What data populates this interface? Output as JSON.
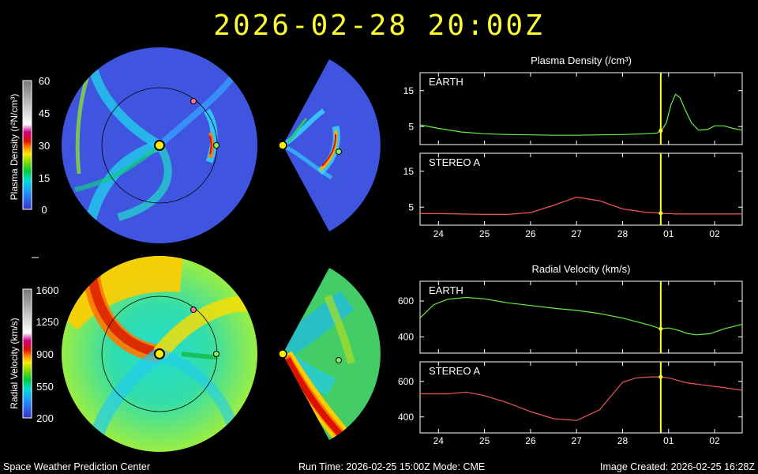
{
  "title": "2026-02-28  20:00Z",
  "footer": {
    "left": "Space Weather Prediction Center",
    "center": "Run Time: 2026-02-25 15:00Z  Mode: CME",
    "right": "Image Created: 2026-02-25 16:28Z"
  },
  "colorbars": [
    {
      "label": "Plasma Density (r²N/cm³)",
      "ticks": [
        "60",
        "45",
        "30",
        "15",
        "0"
      ]
    },
    {
      "label": "Radial Velocity (km/s)",
      "ticks": [
        "1600",
        "1250",
        "900",
        "550",
        "200"
      ]
    }
  ],
  "colors": {
    "title": "#ffff33",
    "earth": "#66ee44",
    "stereo_a": "#ee5555",
    "current_time": "#ffff33",
    "model_background_density": "#3f55e0"
  },
  "chart_data": [
    {
      "type": "line",
      "title": "Plasma Density (/cm³)",
      "x_ticks": [
        "24",
        "25",
        "26",
        "27",
        "28",
        "01",
        "02"
      ],
      "x": [
        23.6,
        24.0,
        24.5,
        25.0,
        25.5,
        26.0,
        26.5,
        27.0,
        27.5,
        28.0,
        28.5,
        28.75,
        28.85,
        28.95,
        29.05,
        29.15,
        29.25,
        29.35,
        29.5,
        29.65,
        29.85,
        30.0,
        30.2,
        30.4,
        30.6
      ],
      "current_time": 28.83,
      "panels": [
        {
          "name": "EARTH",
          "yticks": [
            "15",
            "5"
          ],
          "ylim": [
            0,
            20
          ],
          "values": [
            5.5,
            4.5,
            3.5,
            3.0,
            2.8,
            2.7,
            2.6,
            2.6,
            2.7,
            2.8,
            3.0,
            3.2,
            4.0,
            6.0,
            11.0,
            14.0,
            13.0,
            10.0,
            6.0,
            4.0,
            4.2,
            5.2,
            5.2,
            4.5,
            4.0
          ]
        },
        {
          "name": "STEREO A",
          "yticks": [
            "15",
            "5"
          ],
          "ylim": [
            0,
            20
          ],
          "values": [
            3.2,
            3.2,
            3.1,
            3.0,
            3.0,
            3.5,
            5.5,
            7.8,
            6.8,
            4.5,
            3.6,
            3.4,
            3.3,
            3.2,
            3.2,
            3.1,
            3.1,
            3.1,
            3.1,
            3.1,
            3.1,
            3.1,
            3.1,
            3.1,
            3.1
          ]
        }
      ]
    },
    {
      "type": "line",
      "title": "Radial Velocity (km/s)",
      "x_ticks": [
        "24",
        "25",
        "26",
        "27",
        "28",
        "01",
        "02"
      ],
      "x": [
        23.6,
        23.9,
        24.2,
        24.6,
        25.0,
        25.5,
        26.0,
        26.5,
        27.0,
        27.5,
        28.0,
        28.3,
        28.6,
        28.83,
        29.0,
        29.2,
        29.4,
        29.6,
        29.9,
        30.2,
        30.6
      ],
      "current_time": 28.83,
      "panels": [
        {
          "name": "EARTH",
          "yticks": [
            "600",
            "400"
          ],
          "ylim": [
            310,
            710
          ],
          "values": [
            505,
            580,
            610,
            620,
            612,
            590,
            575,
            560,
            548,
            530,
            505,
            485,
            465,
            445,
            450,
            438,
            420,
            412,
            418,
            445,
            470
          ]
        },
        {
          "name": "STEREO A",
          "yticks": [
            "600",
            "400"
          ],
          "ylim": [
            310,
            710
          ],
          "values": [
            530,
            530,
            530,
            540,
            520,
            480,
            430,
            390,
            380,
            440,
            595,
            620,
            625,
            625,
            620,
            605,
            592,
            585,
            575,
            565,
            550
          ]
        }
      ]
    }
  ]
}
